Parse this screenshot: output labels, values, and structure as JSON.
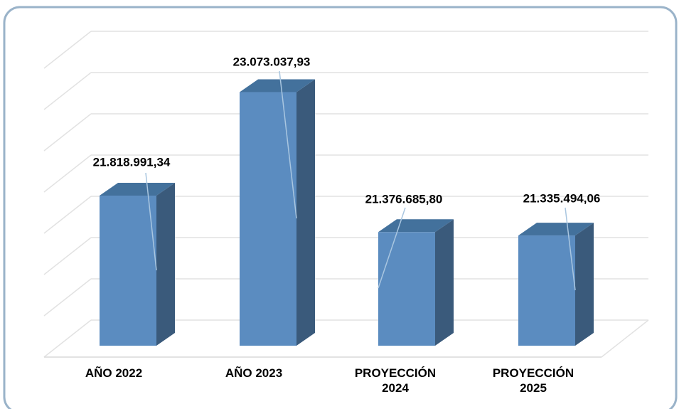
{
  "chart_data": {
    "type": "bar3d",
    "categories": [
      "AÑO 2022",
      "AÑO 2023",
      "PROYECCIÓN 2024",
      "PROYECCIÓN 2025"
    ],
    "values": [
      21818991.34,
      23073037.93,
      21376685.8,
      21335494.06
    ],
    "value_labels": [
      "21.818.991,34",
      "23.073.037,93",
      "21.376.685,80",
      "21.335.494,06"
    ],
    "color": "#5b8cc0",
    "ylim": [
      20000000,
      23500000
    ],
    "yticks": [
      20000000,
      20500000,
      21000000,
      21500000,
      22000000,
      22500000,
      23000000,
      23500000
    ],
    "grid": true
  }
}
